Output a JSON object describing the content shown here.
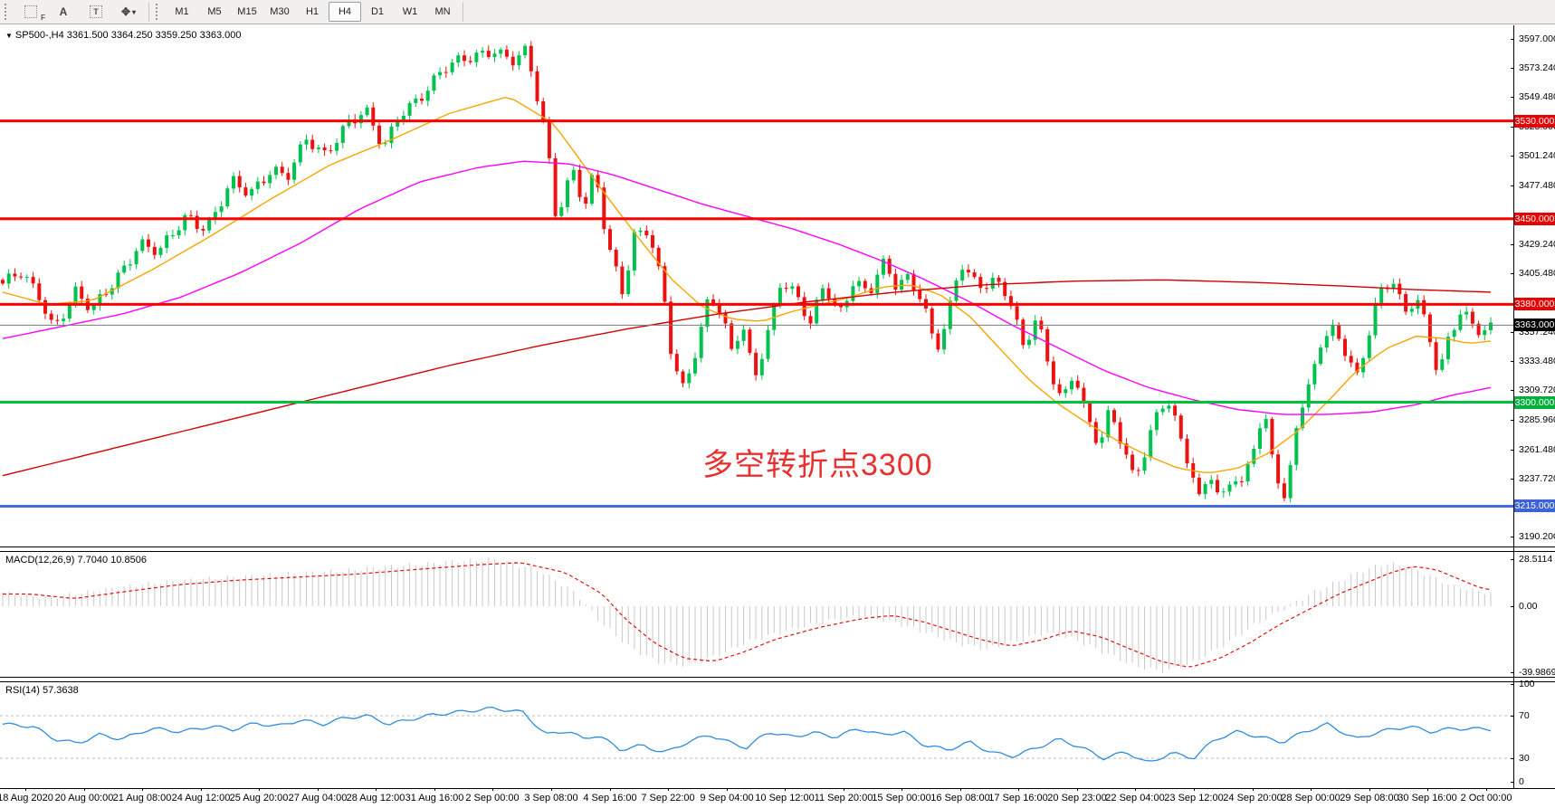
{
  "toolbar": {
    "tools": [
      {
        "name": "grid-f-tool",
        "glyph": "F"
      },
      {
        "name": "text-a-tool",
        "glyph": "A"
      },
      {
        "name": "text-box-tool",
        "glyph": "T"
      },
      {
        "name": "cursor-tool",
        "glyph": "✥"
      }
    ],
    "timeframes": [
      "M1",
      "M5",
      "M15",
      "M30",
      "H1",
      "H4",
      "D1",
      "W1",
      "MN"
    ],
    "active_timeframe": "H4"
  },
  "symbol_bar": {
    "triangle": "▼",
    "text": "SP500-,H4 3361.500 3364.250 3359.250 3363.000",
    "symbol": "SP500-",
    "timeframe": "H4",
    "open": "3361.500",
    "high": "3364.250",
    "low": "3359.250",
    "close": "3363.000"
  },
  "annotation": {
    "text": "多空转折点3300",
    "color": "#e83030"
  },
  "levels": [
    {
      "price": 3530,
      "label": "3530.000",
      "color": "#ff0000",
      "badge": "#e80000",
      "line_width": 3
    },
    {
      "price": 3450,
      "label": "3450.000",
      "color": "#ff0000",
      "badge": "#e80000",
      "line_width": 3
    },
    {
      "price": 3380,
      "label": "3380.000",
      "color": "#ff0000",
      "badge": "#e80000",
      "line_width": 3
    },
    {
      "price": 3363,
      "label": "3363.000",
      "color": "#7a7a7a",
      "badge": "#000000",
      "line_width": 1
    },
    {
      "price": 3300,
      "label": "3300.000",
      "color": "#00c03c",
      "badge": "#00b03a",
      "line_width": 3
    },
    {
      "price": 3215,
      "label": "3215.000",
      "color": "#4169e1",
      "badge": "#3c62d8",
      "line_width": 3
    }
  ],
  "price_axis": {
    "ticks": [
      "3597.000",
      "3573.240",
      "3549.480",
      "3525.000",
      "3501.240",
      "3477.480",
      "3429.240",
      "3405.480",
      "3357.240",
      "3333.480",
      "3309.720",
      "3285.960",
      "3261.480",
      "3237.720",
      "3190.200"
    ]
  },
  "macd": {
    "label": "MACD(12,26,9)",
    "values": "7.7040 10.8506",
    "axis": [
      {
        "v": 28.5114,
        "label": "28.5114"
      },
      {
        "v": 0,
        "label": "0.00"
      },
      {
        "v": -39.9869,
        "label": "-39.9869"
      }
    ]
  },
  "rsi": {
    "label": "RSI(14)",
    "value": "57.3638",
    "axis": [
      {
        "v": 100,
        "label": "100"
      },
      {
        "v": 70,
        "label": "70"
      },
      {
        "v": 30,
        "label": "30"
      },
      {
        "v": 0,
        "label": "0"
      }
    ],
    "level_lines": [
      70,
      30
    ]
  },
  "dates": [
    "18 Aug 2020",
    "20 Aug 00:00",
    "21 Aug 08:00",
    "24 Aug 12:00",
    "25 Aug 20:00",
    "27 Aug 04:00",
    "28 Aug 12:00",
    "31 Aug 16:00",
    "2 Sep 00:00",
    "3 Sep 08:00",
    "4 Sep 16:00",
    "7 Sep 22:00",
    "9 Sep 04:00",
    "10 Sep 12:00",
    "11 Sep 20:00",
    "15 Sep 00:00",
    "16 Sep 08:00",
    "17 Sep 16:00",
    "20 Sep 23:00",
    "22 Sep 04:00",
    "23 Sep 12:00",
    "24 Sep 20:00",
    "28 Sep 00:00",
    "29 Sep 08:00",
    "30 Sep 16:00",
    "2 Oct 00:00"
  ],
  "chart_data": {
    "type": "candlestick",
    "title": "SP500- H4",
    "price_range": [
      3182,
      3608
    ],
    "colors": {
      "up": "#00c24e",
      "down": "#ee1111",
      "macd_hist": "#c9c9c9",
      "macd_signal": "#e01010",
      "rsi": "#2e8ce0"
    },
    "price_path": [
      [
        0.0,
        3397
      ],
      [
        0.012,
        3404
      ],
      [
        0.025,
        3386
      ],
      [
        0.034,
        3362
      ],
      [
        0.049,
        3390
      ],
      [
        0.06,
        3373
      ],
      [
        0.077,
        3403
      ],
      [
        0.092,
        3431
      ],
      [
        0.105,
        3421
      ],
      [
        0.124,
        3453
      ],
      [
        0.137,
        3443
      ],
      [
        0.154,
        3479
      ],
      [
        0.166,
        3469
      ],
      [
        0.181,
        3493
      ],
      [
        0.191,
        3485
      ],
      [
        0.204,
        3513
      ],
      [
        0.216,
        3501
      ],
      [
        0.232,
        3531
      ],
      [
        0.244,
        3538
      ],
      [
        0.256,
        3505
      ],
      [
        0.267,
        3536
      ],
      [
        0.282,
        3553
      ],
      [
        0.296,
        3571
      ],
      [
        0.318,
        3584
      ],
      [
        0.33,
        3590
      ],
      [
        0.342,
        3578
      ],
      [
        0.352,
        3585
      ],
      [
        0.365,
        3520
      ],
      [
        0.372,
        3452
      ],
      [
        0.383,
        3492
      ],
      [
        0.391,
        3458
      ],
      [
        0.398,
        3488
      ],
      [
        0.406,
        3430
      ],
      [
        0.417,
        3390
      ],
      [
        0.424,
        3438
      ],
      [
        0.434,
        3442
      ],
      [
        0.444,
        3388
      ],
      [
        0.45,
        3332
      ],
      [
        0.457,
        3310
      ],
      [
        0.467,
        3348
      ],
      [
        0.475,
        3392
      ],
      [
        0.483,
        3372
      ],
      [
        0.49,
        3340
      ],
      [
        0.497,
        3362
      ],
      [
        0.505,
        3318
      ],
      [
        0.513,
        3352
      ],
      [
        0.523,
        3402
      ],
      [
        0.533,
        3388
      ],
      [
        0.543,
        3362
      ],
      [
        0.552,
        3396
      ],
      [
        0.562,
        3372
      ],
      [
        0.572,
        3402
      ],
      [
        0.582,
        3388
      ],
      [
        0.591,
        3412
      ],
      [
        0.6,
        3395
      ],
      [
        0.608,
        3402
      ],
      [
        0.618,
        3388
      ],
      [
        0.627,
        3342
      ],
      [
        0.635,
        3368
      ],
      [
        0.644,
        3412
      ],
      [
        0.655,
        3395
      ],
      [
        0.666,
        3402
      ],
      [
        0.676,
        3388
      ],
      [
        0.686,
        3342
      ],
      [
        0.695,
        3368
      ],
      [
        0.703,
        3330
      ],
      [
        0.712,
        3302
      ],
      [
        0.72,
        3328
      ],
      [
        0.728,
        3288
      ],
      [
        0.737,
        3262
      ],
      [
        0.744,
        3292
      ],
      [
        0.752,
        3268
      ],
      [
        0.76,
        3240
      ],
      [
        0.768,
        3262
      ],
      [
        0.775,
        3288
      ],
      [
        0.782,
        3302
      ],
      [
        0.789,
        3278
      ],
      [
        0.797,
        3250
      ],
      [
        0.804,
        3222
      ],
      [
        0.811,
        3248
      ],
      [
        0.818,
        3218
      ],
      [
        0.826,
        3240
      ],
      [
        0.833,
        3228
      ],
      [
        0.84,
        3262
      ],
      [
        0.848,
        3288
      ],
      [
        0.855,
        3250
      ],
      [
        0.862,
        3218
      ],
      [
        0.87,
        3288
      ],
      [
        0.878,
        3310
      ],
      [
        0.886,
        3348
      ],
      [
        0.895,
        3360
      ],
      [
        0.903,
        3342
      ],
      [
        0.91,
        3322
      ],
      [
        0.917,
        3352
      ],
      [
        0.925,
        3388
      ],
      [
        0.934,
        3398
      ],
      [
        0.942,
        3372
      ],
      [
        0.95,
        3388
      ],
      [
        0.958,
        3360
      ],
      [
        0.965,
        3322
      ],
      [
        0.972,
        3352
      ],
      [
        0.98,
        3372
      ],
      [
        0.988,
        3362
      ],
      [
        0.994,
        3358
      ],
      [
        1.0,
        3363
      ]
    ],
    "mas": [
      {
        "name": "ma-fast",
        "color": "#f7a500",
        "width": 1.4,
        "points": [
          [
            0.0,
            3390
          ],
          [
            0.03,
            3380
          ],
          [
            0.06,
            3383
          ],
          [
            0.1,
            3408
          ],
          [
            0.14,
            3436
          ],
          [
            0.18,
            3466
          ],
          [
            0.22,
            3494
          ],
          [
            0.26,
            3514
          ],
          [
            0.3,
            3536
          ],
          [
            0.34,
            3550
          ],
          [
            0.37,
            3528
          ],
          [
            0.4,
            3478
          ],
          [
            0.43,
            3430
          ],
          [
            0.45,
            3400
          ],
          [
            0.47,
            3378
          ],
          [
            0.49,
            3368
          ],
          [
            0.51,
            3366
          ],
          [
            0.53,
            3374
          ],
          [
            0.55,
            3380
          ],
          [
            0.57,
            3386
          ],
          [
            0.59,
            3394
          ],
          [
            0.61,
            3396
          ],
          [
            0.63,
            3388
          ],
          [
            0.65,
            3370
          ],
          [
            0.67,
            3344
          ],
          [
            0.69,
            3318
          ],
          [
            0.71,
            3298
          ],
          [
            0.73,
            3282
          ],
          [
            0.75,
            3268
          ],
          [
            0.77,
            3256
          ],
          [
            0.79,
            3246
          ],
          [
            0.81,
            3242
          ],
          [
            0.83,
            3246
          ],
          [
            0.85,
            3258
          ],
          [
            0.87,
            3276
          ],
          [
            0.89,
            3300
          ],
          [
            0.91,
            3326
          ],
          [
            0.93,
            3344
          ],
          [
            0.95,
            3354
          ],
          [
            0.97,
            3352
          ],
          [
            0.985,
            3348
          ],
          [
            1.0,
            3350
          ]
        ]
      },
      {
        "name": "ma-mid",
        "color": "#ff00ff",
        "width": 1.4,
        "points": [
          [
            0.0,
            3352
          ],
          [
            0.04,
            3362
          ],
          [
            0.08,
            3372
          ],
          [
            0.12,
            3386
          ],
          [
            0.16,
            3406
          ],
          [
            0.2,
            3430
          ],
          [
            0.24,
            3458
          ],
          [
            0.28,
            3480
          ],
          [
            0.32,
            3492
          ],
          [
            0.35,
            3497
          ],
          [
            0.38,
            3495
          ],
          [
            0.41,
            3486
          ],
          [
            0.44,
            3474
          ],
          [
            0.47,
            3462
          ],
          [
            0.5,
            3452
          ],
          [
            0.53,
            3442
          ],
          [
            0.56,
            3430
          ],
          [
            0.59,
            3416
          ],
          [
            0.62,
            3400
          ],
          [
            0.65,
            3382
          ],
          [
            0.68,
            3362
          ],
          [
            0.71,
            3344
          ],
          [
            0.74,
            3326
          ],
          [
            0.77,
            3312
          ],
          [
            0.8,
            3302
          ],
          [
            0.83,
            3294
          ],
          [
            0.86,
            3290
          ],
          [
            0.89,
            3290
          ],
          [
            0.92,
            3292
          ],
          [
            0.95,
            3298
          ],
          [
            0.975,
            3306
          ],
          [
            1.0,
            3312
          ]
        ]
      },
      {
        "name": "ma-slow",
        "color": "#d40000",
        "width": 1.4,
        "points": [
          [
            0.0,
            3240
          ],
          [
            0.06,
            3258
          ],
          [
            0.12,
            3276
          ],
          [
            0.18,
            3294
          ],
          [
            0.24,
            3312
          ],
          [
            0.3,
            3330
          ],
          [
            0.36,
            3346
          ],
          [
            0.42,
            3360
          ],
          [
            0.48,
            3372
          ],
          [
            0.54,
            3382
          ],
          [
            0.6,
            3390
          ],
          [
            0.66,
            3396
          ],
          [
            0.72,
            3399
          ],
          [
            0.78,
            3400
          ],
          [
            0.84,
            3398
          ],
          [
            0.9,
            3395
          ],
          [
            0.95,
            3392
          ],
          [
            1.0,
            3390
          ]
        ]
      }
    ],
    "macd_hist": [
      [
        0.0,
        8
      ],
      [
        0.03,
        5
      ],
      [
        0.06,
        9
      ],
      [
        0.1,
        14
      ],
      [
        0.14,
        17
      ],
      [
        0.18,
        19
      ],
      [
        0.22,
        21
      ],
      [
        0.26,
        24
      ],
      [
        0.3,
        27
      ],
      [
        0.33,
        28.5
      ],
      [
        0.36,
        22
      ],
      [
        0.385,
        8
      ],
      [
        0.4,
        -8
      ],
      [
        0.42,
        -24
      ],
      [
        0.44,
        -34
      ],
      [
        0.46,
        -36
      ],
      [
        0.48,
        -30
      ],
      [
        0.5,
        -22
      ],
      [
        0.53,
        -14
      ],
      [
        0.56,
        -8
      ],
      [
        0.58,
        -6
      ],
      [
        0.6,
        -10
      ],
      [
        0.62,
        -16
      ],
      [
        0.64,
        -22
      ],
      [
        0.66,
        -26
      ],
      [
        0.68,
        -22
      ],
      [
        0.7,
        -16
      ],
      [
        0.72,
        -20
      ],
      [
        0.74,
        -28
      ],
      [
        0.76,
        -36
      ],
      [
        0.78,
        -40
      ],
      [
        0.8,
        -34
      ],
      [
        0.82,
        -24
      ],
      [
        0.84,
        -12
      ],
      [
        0.86,
        -2
      ],
      [
        0.88,
        8
      ],
      [
        0.9,
        16
      ],
      [
        0.915,
        22
      ],
      [
        0.93,
        26
      ],
      [
        0.945,
        24
      ],
      [
        0.96,
        18
      ],
      [
        0.975,
        12
      ],
      [
        1.0,
        7.7
      ]
    ],
    "rsi": [
      [
        0.0,
        62
      ],
      [
        0.02,
        60
      ],
      [
        0.035,
        48
      ],
      [
        0.05,
        44
      ],
      [
        0.065,
        52
      ],
      [
        0.08,
        48
      ],
      [
        0.1,
        58
      ],
      [
        0.12,
        55
      ],
      [
        0.14,
        60
      ],
      [
        0.155,
        57
      ],
      [
        0.17,
        63
      ],
      [
        0.185,
        60
      ],
      [
        0.2,
        66
      ],
      [
        0.215,
        62
      ],
      [
        0.23,
        68
      ],
      [
        0.245,
        70
      ],
      [
        0.26,
        62
      ],
      [
        0.275,
        67
      ],
      [
        0.29,
        71
      ],
      [
        0.31,
        74
      ],
      [
        0.33,
        77
      ],
      [
        0.35,
        73
      ],
      [
        0.365,
        52
      ],
      [
        0.38,
        56
      ],
      [
        0.39,
        48
      ],
      [
        0.4,
        52
      ],
      [
        0.415,
        38
      ],
      [
        0.43,
        42
      ],
      [
        0.445,
        35
      ],
      [
        0.46,
        45
      ],
      [
        0.475,
        52
      ],
      [
        0.49,
        44
      ],
      [
        0.5,
        40
      ],
      [
        0.515,
        55
      ],
      [
        0.53,
        50
      ],
      [
        0.545,
        54
      ],
      [
        0.56,
        50
      ],
      [
        0.575,
        58
      ],
      [
        0.59,
        52
      ],
      [
        0.605,
        55
      ],
      [
        0.62,
        42
      ],
      [
        0.635,
        38
      ],
      [
        0.65,
        45
      ],
      [
        0.665,
        35
      ],
      [
        0.68,
        32
      ],
      [
        0.695,
        40
      ],
      [
        0.71,
        48
      ],
      [
        0.725,
        40
      ],
      [
        0.74,
        30
      ],
      [
        0.755,
        36
      ],
      [
        0.77,
        25
      ],
      [
        0.785,
        35
      ],
      [
        0.8,
        30
      ],
      [
        0.815,
        48
      ],
      [
        0.83,
        55
      ],
      [
        0.845,
        50
      ],
      [
        0.86,
        45
      ],
      [
        0.875,
        55
      ],
      [
        0.89,
        62
      ],
      [
        0.9,
        55
      ],
      [
        0.91,
        48
      ],
      [
        0.925,
        55
      ],
      [
        0.945,
        60
      ],
      [
        0.96,
        55
      ],
      [
        0.975,
        58
      ],
      [
        1.0,
        57.4
      ]
    ]
  }
}
